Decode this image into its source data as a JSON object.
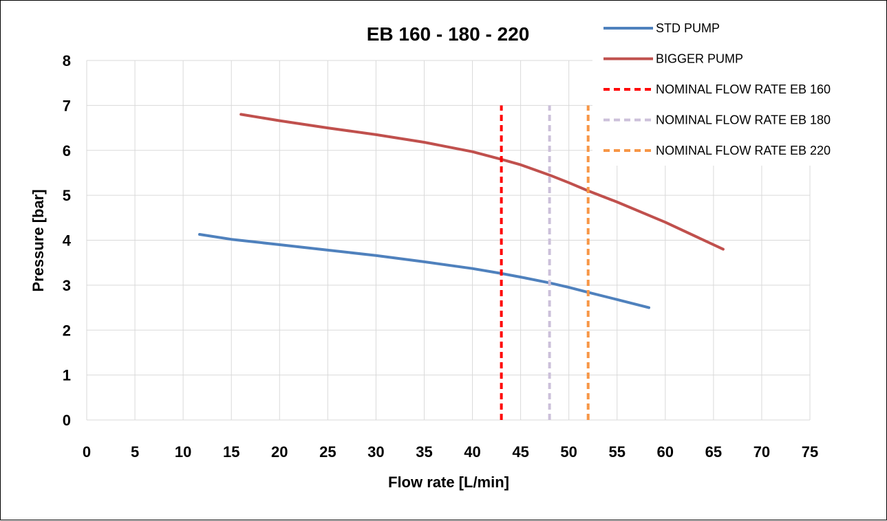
{
  "chart_data": {
    "type": "line",
    "title": "EB 160 - 180 - 220",
    "xlabel": "Flow rate [L/min]",
    "ylabel": "Pressure [bar]",
    "xlim": [
      0,
      75
    ],
    "ylim": [
      0,
      8
    ],
    "xticks": [
      0,
      5,
      10,
      15,
      20,
      25,
      30,
      35,
      40,
      45,
      50,
      55,
      60,
      65,
      70,
      75
    ],
    "yticks": [
      0,
      1,
      2,
      3,
      4,
      5,
      6,
      7,
      8
    ],
    "grid": true,
    "legend_position": "top-right",
    "series": [
      {
        "name": "STD PUMP",
        "color": "#4F81BD",
        "style": "solid",
        "x": [
          11.7,
          15,
          20,
          25,
          30,
          35,
          40,
          43,
          45,
          48,
          50,
          52,
          55,
          58.3
        ],
        "y": [
          4.13,
          4.02,
          3.9,
          3.78,
          3.66,
          3.52,
          3.37,
          3.26,
          3.18,
          3.05,
          2.95,
          2.84,
          2.68,
          2.5
        ]
      },
      {
        "name": "BIGGER PUMP",
        "color": "#C0504D",
        "style": "solid",
        "x": [
          16,
          20,
          25,
          30,
          35,
          40,
          43,
          45,
          48,
          50,
          52,
          55,
          60,
          66
        ],
        "y": [
          6.8,
          6.66,
          6.5,
          6.35,
          6.18,
          5.97,
          5.8,
          5.68,
          5.45,
          5.28,
          5.1,
          4.85,
          4.4,
          3.8
        ]
      },
      {
        "name": "NOMINAL FLOW RATE EB 160",
        "color": "#FF0000",
        "style": "dashed",
        "x": [
          43,
          43
        ],
        "y": [
          0,
          7
        ]
      },
      {
        "name": "NOMINAL FLOW RATE EB 180",
        "color": "#CCC0DA",
        "style": "dashed",
        "x": [
          48,
          48
        ],
        "y": [
          0,
          7
        ]
      },
      {
        "name": "NOMINAL FLOW RATE EB 220",
        "color": "#F79646",
        "style": "dashed",
        "x": [
          52,
          52
        ],
        "y": [
          0,
          7
        ]
      }
    ]
  }
}
